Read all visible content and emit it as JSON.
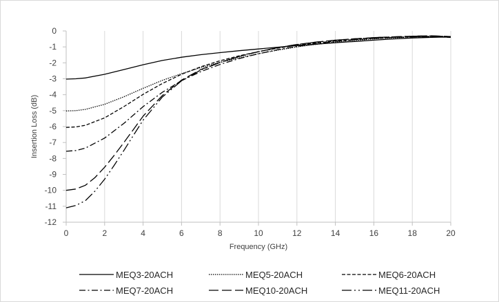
{
  "chart_data": {
    "type": "line",
    "xlabel": "Frequency (GHz)",
    "ylabel": "Insertion Loss (dB)",
    "xlim": [
      0,
      20
    ],
    "ylim": [
      -12,
      0
    ],
    "x_ticks": [
      0,
      2,
      4,
      6,
      8,
      10,
      12,
      14,
      16,
      18,
      20
    ],
    "y_ticks": [
      0,
      -1,
      -2,
      -3,
      -4,
      -5,
      -6,
      -7,
      -8,
      -9,
      -10,
      -11,
      -12
    ],
    "grid": "vertical",
    "legend_position": "bottom",
    "series": [
      {
        "name": "MEQ3-20ACH",
        "dash": "solid",
        "x": [
          0,
          0.5,
          1,
          2,
          3,
          4,
          5,
          6,
          7,
          8,
          9,
          10,
          11,
          12,
          13,
          14,
          15,
          16,
          17,
          18,
          19,
          20
        ],
        "y": [
          -3.02,
          -3.0,
          -2.95,
          -2.72,
          -2.42,
          -2.12,
          -1.85,
          -1.65,
          -1.49,
          -1.36,
          -1.24,
          -1.13,
          -1.02,
          -0.92,
          -0.83,
          -0.74,
          -0.66,
          -0.58,
          -0.5,
          -0.44,
          -0.4,
          -0.38
        ]
      },
      {
        "name": "MEQ5-20ACH",
        "dash": "dotted",
        "x": [
          0,
          0.5,
          1,
          2,
          3,
          4,
          5,
          6,
          7,
          8,
          9,
          10,
          11,
          12,
          13,
          14,
          15,
          16,
          17,
          18,
          19,
          20
        ],
        "y": [
          -5.02,
          -5.0,
          -4.92,
          -4.6,
          -4.13,
          -3.6,
          -3.1,
          -2.68,
          -2.3,
          -1.97,
          -1.69,
          -1.43,
          -1.2,
          -1.0,
          -0.84,
          -0.7,
          -0.59,
          -0.5,
          -0.43,
          -0.38,
          -0.36,
          -0.4
        ]
      },
      {
        "name": "MEQ6-20ACH",
        "dash": "short-dash",
        "x": [
          0,
          0.5,
          1,
          2,
          3,
          4,
          5,
          6,
          7,
          8,
          9,
          10,
          11,
          12,
          13,
          14,
          15,
          16,
          17,
          18,
          19,
          20
        ],
        "y": [
          -6.05,
          -6.02,
          -5.92,
          -5.45,
          -4.75,
          -3.98,
          -3.3,
          -2.72,
          -2.25,
          -1.87,
          -1.56,
          -1.3,
          -1.08,
          -0.9,
          -0.75,
          -0.63,
          -0.54,
          -0.46,
          -0.4,
          -0.36,
          -0.34,
          -0.4
        ]
      },
      {
        "name": "MEQ7-20ACH",
        "dash": "dash-dot",
        "x": [
          0,
          0.5,
          1,
          2,
          3,
          4,
          5,
          6,
          7,
          8,
          9,
          10,
          11,
          12,
          13,
          14,
          15,
          16,
          17,
          18,
          19,
          20
        ],
        "y": [
          -7.55,
          -7.5,
          -7.35,
          -6.72,
          -5.8,
          -4.75,
          -3.85,
          -3.12,
          -2.55,
          -2.1,
          -1.73,
          -1.43,
          -1.18,
          -0.97,
          -0.8,
          -0.66,
          -0.55,
          -0.47,
          -0.41,
          -0.37,
          -0.35,
          -0.4
        ]
      },
      {
        "name": "MEQ10-20ACH",
        "dash": "long-dash",
        "x": [
          0,
          0.5,
          1,
          1.5,
          2,
          2.5,
          3,
          3.5,
          4,
          5,
          6,
          7,
          8,
          9,
          10,
          11,
          12,
          13,
          14,
          15,
          16,
          17,
          18,
          19,
          20
        ],
        "y": [
          -10.0,
          -9.92,
          -9.68,
          -9.2,
          -8.55,
          -7.8,
          -7.0,
          -6.18,
          -5.35,
          -4.05,
          -3.08,
          -2.42,
          -1.97,
          -1.6,
          -1.3,
          -1.05,
          -0.85,
          -0.7,
          -0.58,
          -0.49,
          -0.42,
          -0.37,
          -0.33,
          -0.3,
          -0.35
        ]
      },
      {
        "name": "MEQ11-20ACH",
        "dash": "long-dash-dot-dot",
        "x": [
          0,
          0.5,
          1,
          1.5,
          2,
          2.5,
          3,
          3.5,
          4,
          5,
          6,
          7,
          8,
          9,
          10,
          11,
          12,
          13,
          14,
          15,
          16,
          17,
          18,
          19,
          20
        ],
        "y": [
          -11.1,
          -10.95,
          -10.65,
          -10.05,
          -9.3,
          -8.42,
          -7.5,
          -6.55,
          -5.6,
          -4.15,
          -3.13,
          -2.45,
          -1.98,
          -1.6,
          -1.3,
          -1.05,
          -0.85,
          -0.7,
          -0.58,
          -0.49,
          -0.42,
          -0.37,
          -0.33,
          -0.31,
          -0.36
        ]
      }
    ]
  }
}
